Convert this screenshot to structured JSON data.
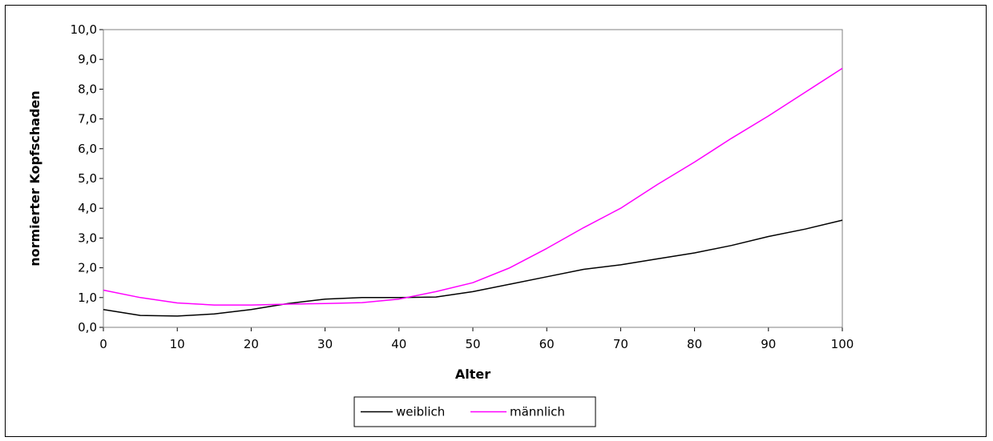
{
  "chart_data": {
    "type": "line",
    "title": "",
    "xlabel": "Alter",
    "ylabel": "normierter Kopfschaden",
    "xlim": [
      0,
      100
    ],
    "ylim": [
      0,
      10
    ],
    "x_ticks": [
      0,
      10,
      20,
      30,
      40,
      50,
      60,
      70,
      80,
      90,
      100
    ],
    "x_tick_labels": [
      "0",
      "10",
      "20",
      "30",
      "40",
      "50",
      "60",
      "70",
      "80",
      "90",
      "100"
    ],
    "y_ticks": [
      0,
      1,
      2,
      3,
      4,
      5,
      6,
      7,
      8,
      9,
      10
    ],
    "y_tick_labels": [
      "0,0",
      "1,0",
      "2,0",
      "3,0",
      "4,0",
      "5,0",
      "6,0",
      "7,0",
      "8,0",
      "9,0",
      "10,0"
    ],
    "grid": false,
    "legend_position": "bottom",
    "x": [
      0,
      5,
      10,
      15,
      20,
      25,
      30,
      35,
      40,
      45,
      50,
      55,
      60,
      65,
      70,
      75,
      80,
      85,
      90,
      95,
      100
    ],
    "series": [
      {
        "name": "weiblich",
        "color": "#000000",
        "values": [
          0.6,
          0.4,
          0.38,
          0.45,
          0.6,
          0.8,
          0.95,
          1.0,
          1.0,
          1.02,
          1.2,
          1.45,
          1.7,
          1.95,
          2.1,
          2.3,
          2.5,
          2.75,
          3.05,
          3.3,
          3.6
        ]
      },
      {
        "name": "männlich",
        "color": "#ff00ff",
        "values": [
          1.25,
          1.0,
          0.82,
          0.75,
          0.75,
          0.78,
          0.8,
          0.83,
          0.95,
          1.2,
          1.5,
          2.0,
          2.65,
          3.35,
          4.0,
          4.8,
          5.55,
          6.35,
          7.1,
          7.9,
          8.7
        ]
      }
    ]
  }
}
